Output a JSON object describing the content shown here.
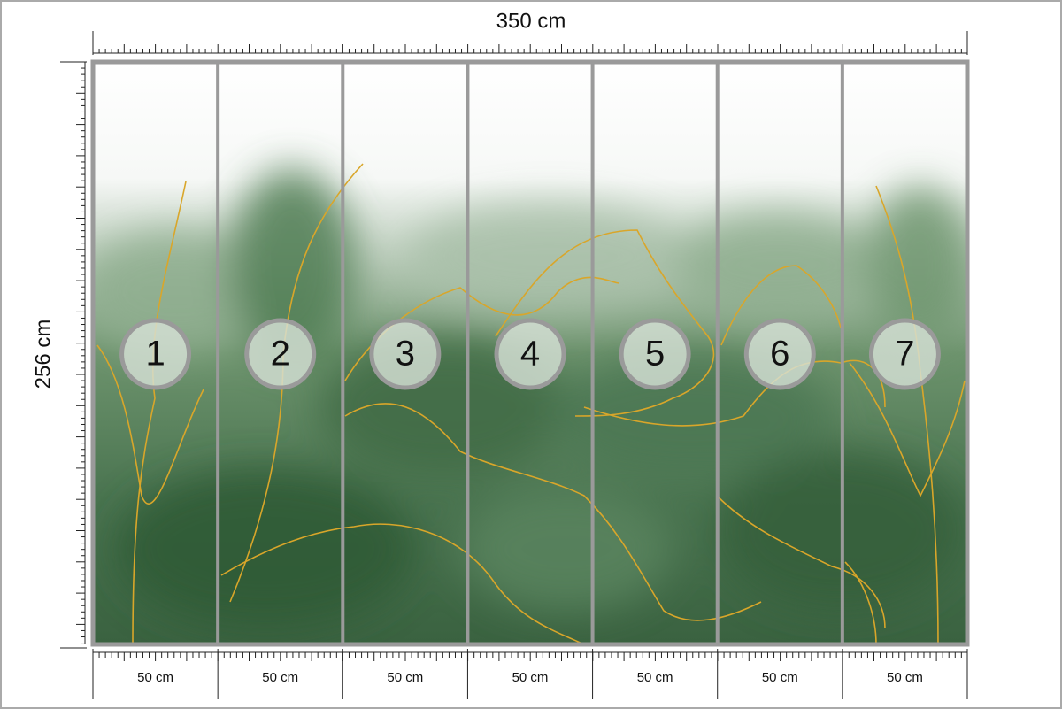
{
  "width_label": "350 cm",
  "height_label": "256 cm",
  "panels": [
    {
      "number": "1",
      "width": "50 cm"
    },
    {
      "number": "2",
      "width": "50 cm"
    },
    {
      "number": "3",
      "width": "50 cm"
    },
    {
      "number": "4",
      "width": "50 cm"
    },
    {
      "number": "5",
      "width": "50 cm"
    },
    {
      "number": "6",
      "width": "50 cm"
    },
    {
      "number": "7",
      "width": "50 cm"
    }
  ]
}
